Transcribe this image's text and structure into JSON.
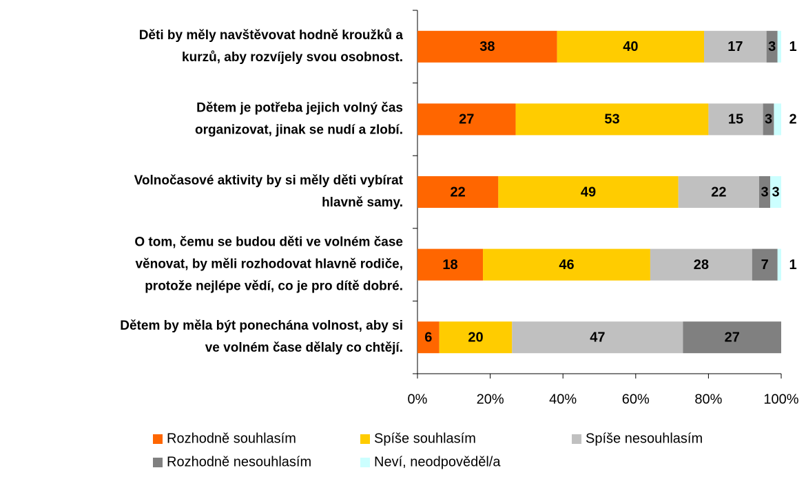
{
  "chart_data": {
    "type": "stacked-bar-100-horizontal",
    "categories": [
      "Děti by měly navštěvovat hodně kroužků a\nkurzů, aby rozvíjely svou osobnost.",
      "Dětem je potřeba jejich volný čas\norganizovat, jinak se nudí a zlobí.",
      "Volnočasové aktivity by si měly děti vybírat\nhlavně samy.",
      "O tom, čemu se budou děti ve volném čase\nvěnovat, by měli rozhodovat hlavně rodiče,\nprotože nejlépe vědí, co je pro dítě dobré.",
      "Dětem by měla být ponechána volnost, aby si\nve volném čase dělaly co chtějí."
    ],
    "series": [
      {
        "name": "Rozhodně souhlasím",
        "color": "#ff6600",
        "values": [
          38,
          27,
          22,
          18,
          6
        ]
      },
      {
        "name": "Spíše souhlasím",
        "color": "#ffcc00",
        "values": [
          40,
          53,
          49,
          46,
          20
        ]
      },
      {
        "name": "Spíše nesouhlasím",
        "color": "#c0c0c0",
        "values": [
          17,
          15,
          22,
          28,
          47
        ]
      },
      {
        "name": "Rozhodně nesouhlasím",
        "color": "#808080",
        "values": [
          3,
          3,
          3,
          7,
          27
        ]
      },
      {
        "name": "Neví, neodpověděl/a",
        "color": "#ccffff",
        "values": [
          1,
          2,
          3,
          1,
          0
        ]
      }
    ],
    "xlim": [
      0,
      100
    ],
    "xticks": [
      {
        "value": 0,
        "label": "0%"
      },
      {
        "value": 20,
        "label": "20%"
      },
      {
        "value": 40,
        "label": "40%"
      },
      {
        "value": 60,
        "label": "60%"
      },
      {
        "value": 80,
        "label": "80%"
      },
      {
        "value": 100,
        "label": "100%"
      }
    ]
  }
}
